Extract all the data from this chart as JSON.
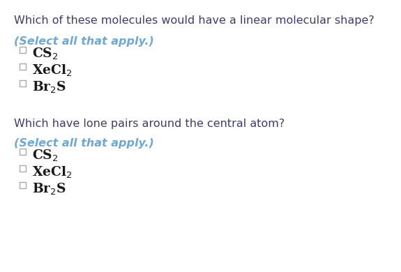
{
  "bg_color": "#ffffff",
  "question1": "Which of these molecules would have a linear molecular shape?",
  "question1_color": "#3d3d6b",
  "select_text": "(Select all that apply.)",
  "select_color": "#6fa8d0",
  "options1": [
    "CS$_2$",
    "XeCl$_2$",
    "Br$_2$S"
  ],
  "question2": "Which have lone pairs around the central atom?",
  "question2_color": "#3d3d6b",
  "options2": [
    "CS$_2$",
    "XeCl$_2$",
    "Br$_2$S"
  ],
  "option_color": "#1a1a1a",
  "checkbox_color": "#aaaaaa",
  "q1_fontsize": 11.5,
  "select_fontsize": 11.5,
  "option_fontsize": 13.5,
  "q2_fontsize": 11.5,
  "figwidth": 5.75,
  "figheight": 3.9,
  "dpi": 100
}
